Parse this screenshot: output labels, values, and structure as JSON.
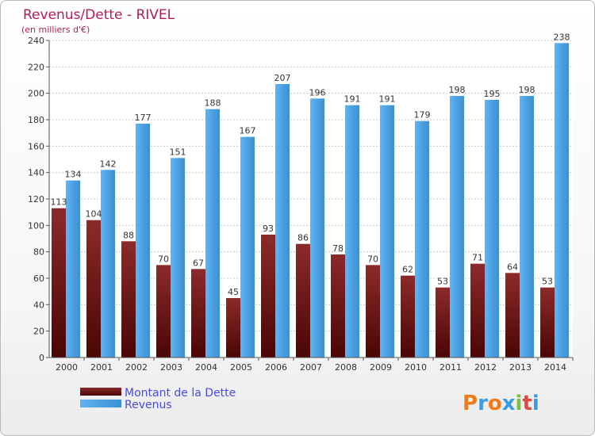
{
  "chart_data": {
    "type": "bar",
    "title": "Revenus/Dette - RIVEL",
    "subtitle": "(en milliers d'€)",
    "categories": [
      "2000",
      "2001",
      "2002",
      "2003",
      "2004",
      "2005",
      "2006",
      "2007",
      "2008",
      "2009",
      "2010",
      "2011",
      "2012",
      "2013",
      "2014"
    ],
    "series": [
      {
        "name": "Montant de la Dette",
        "color": "#7a1a1a",
        "values": [
          113,
          104,
          88,
          70,
          67,
          45,
          93,
          86,
          78,
          70,
          62,
          53,
          71,
          64,
          53
        ]
      },
      {
        "name": "Revenus",
        "color": "#4aa3e6",
        "values": [
          134,
          142,
          177,
          151,
          188,
          167,
          207,
          196,
          191,
          191,
          179,
          198,
          195,
          198,
          238
        ]
      }
    ],
    "ylim": [
      0,
      240
    ],
    "yticks": [
      0,
      20,
      40,
      60,
      80,
      100,
      120,
      140,
      160,
      180,
      200,
      220,
      240
    ],
    "grid": true,
    "legend_position": "bottom-left"
  },
  "brand": {
    "logo_letters": [
      "P",
      "r",
      "o",
      "x",
      "i",
      "t",
      "i"
    ],
    "logo_colors": [
      "#f07a1a",
      "#3a9be0",
      "#f07a1a",
      "#3a9be0",
      "#7ac142",
      "#e04a3a",
      "#3a9be0"
    ]
  }
}
